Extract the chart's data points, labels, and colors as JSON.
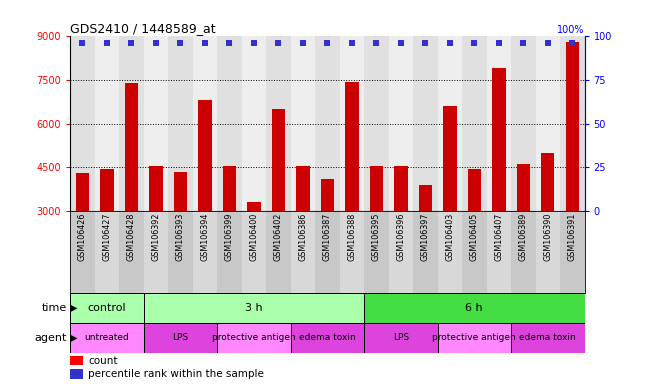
{
  "title": "GDS2410 / 1448589_at",
  "samples": [
    "GSM106426",
    "GSM106427",
    "GSM106428",
    "GSM106392",
    "GSM106393",
    "GSM106394",
    "GSM106399",
    "GSM106400",
    "GSM106402",
    "GSM106386",
    "GSM106387",
    "GSM106388",
    "GSM106395",
    "GSM106396",
    "GSM106397",
    "GSM106403",
    "GSM106405",
    "GSM106407",
    "GSM106389",
    "GSM106390",
    "GSM106391"
  ],
  "counts": [
    4300,
    4450,
    7400,
    4550,
    4350,
    6800,
    4550,
    3300,
    6500,
    4550,
    4100,
    7450,
    4550,
    4550,
    3900,
    6600,
    4450,
    7900,
    4600,
    5000,
    8800
  ],
  "bar_color": "#cc0000",
  "dot_color": "#3333cc",
  "ymin": 3000,
  "ymax": 9000,
  "yticks": [
    3000,
    4500,
    6000,
    7500,
    9000
  ],
  "y2ticks": [
    0,
    25,
    50,
    75,
    100
  ],
  "time_groups": [
    {
      "label": "control",
      "start": 0,
      "end": 3,
      "color": "#aaffaa"
    },
    {
      "label": "3 h",
      "start": 3,
      "end": 12,
      "color": "#aaffaa"
    },
    {
      "label": "6 h",
      "start": 12,
      "end": 21,
      "color": "#44dd44"
    }
  ],
  "agent_groups": [
    {
      "label": "untreated",
      "start": 0,
      "end": 3,
      "color": "#ff88ff"
    },
    {
      "label": "LPS",
      "start": 3,
      "end": 6,
      "color": "#dd44dd"
    },
    {
      "label": "protective antigen",
      "start": 6,
      "end": 9,
      "color": "#ff88ff"
    },
    {
      "label": "edema toxin",
      "start": 9,
      "end": 12,
      "color": "#dd44dd"
    },
    {
      "label": "LPS",
      "start": 12,
      "end": 15,
      "color": "#dd44dd"
    },
    {
      "label": "protective antigen",
      "start": 15,
      "end": 18,
      "color": "#ff88ff"
    },
    {
      "label": "edema toxin",
      "start": 18,
      "end": 21,
      "color": "#dd44dd"
    }
  ],
  "label_bg": "#cccccc",
  "bar_width": 0.55,
  "dot_size": 16
}
